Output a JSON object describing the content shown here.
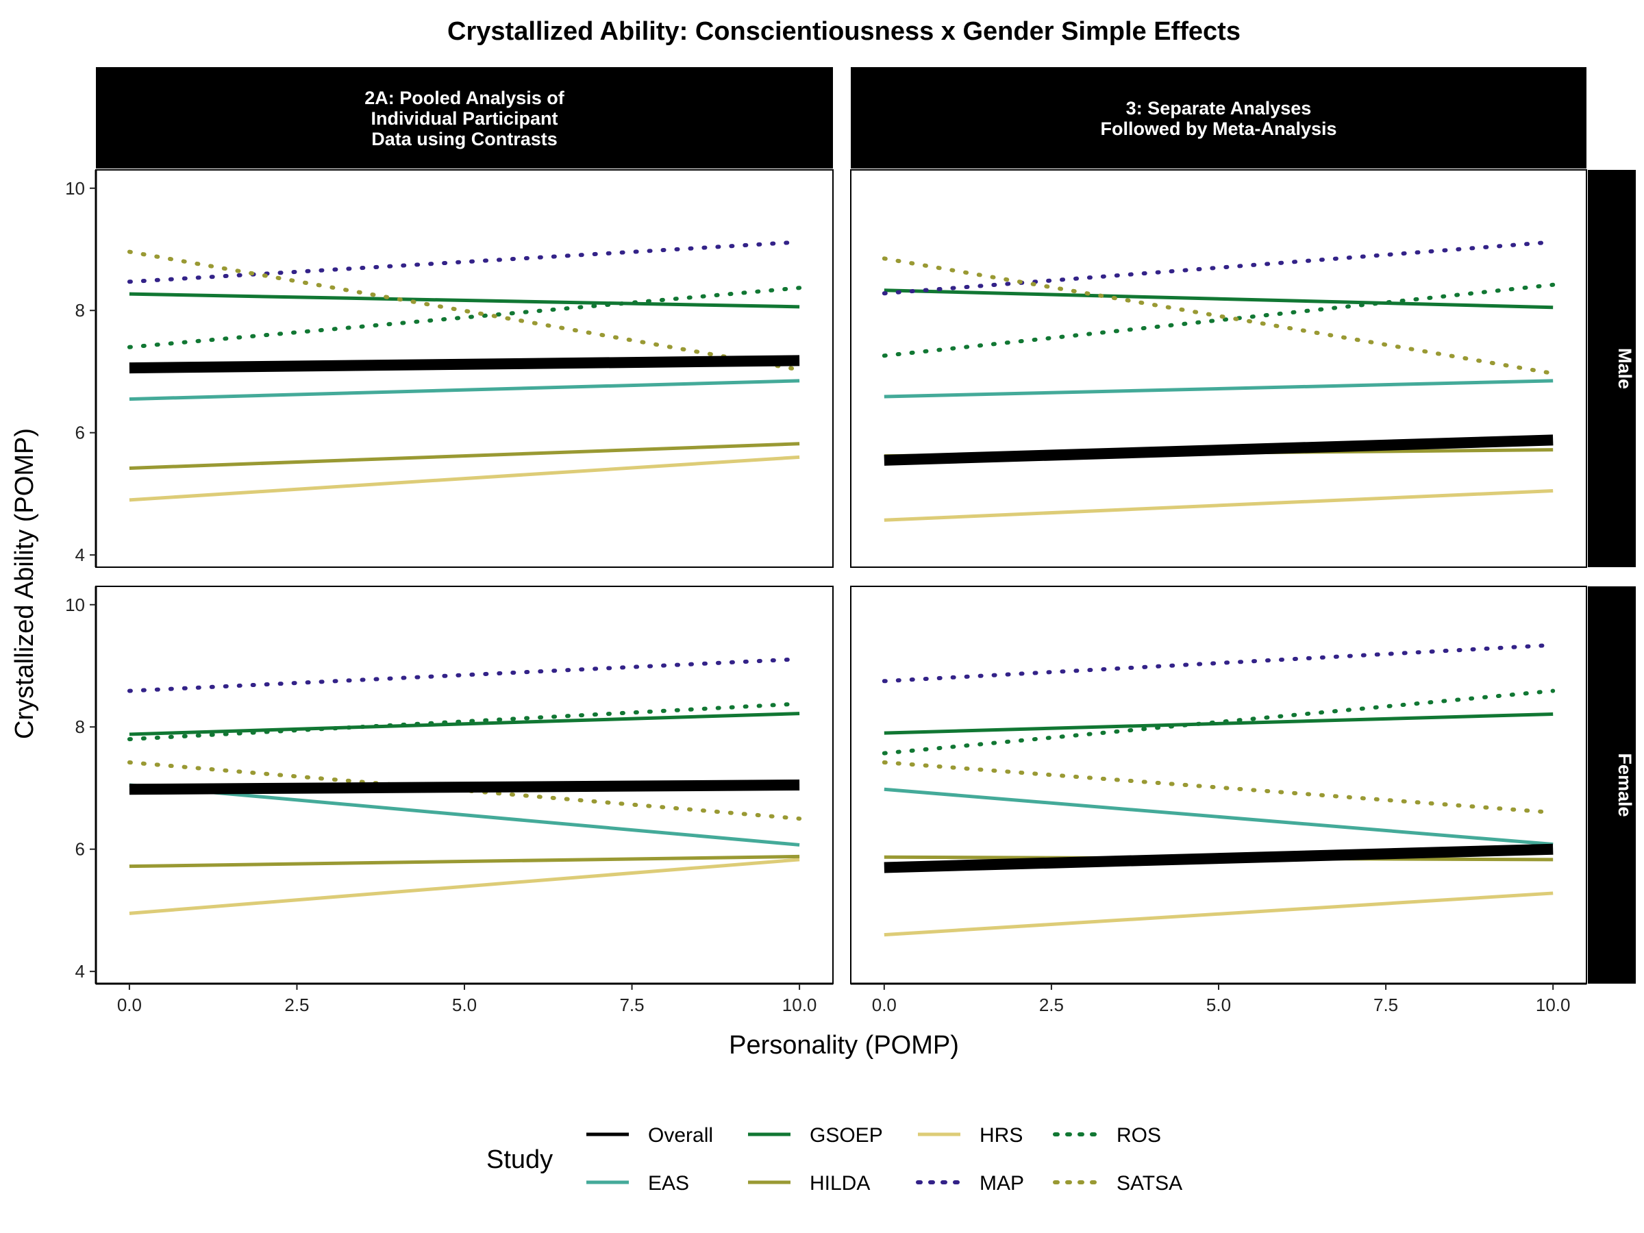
{
  "chart_data": {
    "type": "line",
    "title": "Crystallized Ability: Conscientiousness x Gender Simple Effects",
    "xlabel": "Personality (POMP)",
    "ylabel": "Crystallized Ability (POMP)",
    "xlim": [
      -0.5,
      10.5
    ],
    "ylim": [
      3.8,
      10.3
    ],
    "xticks": [
      "0.0",
      "2.5",
      "5.0",
      "7.5",
      "10.0"
    ],
    "xtick_values": [
      0,
      2.5,
      5,
      7.5,
      10
    ],
    "yticks": [
      "4",
      "6",
      "8",
      "10"
    ],
    "ytick_values": [
      4,
      6,
      8,
      10
    ],
    "grid": false,
    "columns": [
      "2A: Pooled Analysis of\nIndividual Participant\nData using Contrasts",
      "3: Separate Analyses\nFollowed by Meta-Analysis"
    ],
    "rows": [
      "Male",
      "Female"
    ],
    "legend": {
      "title": "Study",
      "position": "bottom",
      "entries": [
        "Overall",
        "EAS",
        "GSOEP",
        "HILDA",
        "HRS",
        "MAP",
        "ROS",
        "SATSA"
      ]
    },
    "styles": {
      "Overall": {
        "color": "#000000",
        "dash": "solid",
        "emphasis": true
      },
      "EAS": {
        "color": "#44AA99",
        "dash": "solid"
      },
      "GSOEP": {
        "color": "#117733",
        "dash": "solid"
      },
      "HILDA": {
        "color": "#999933",
        "dash": "solid"
      },
      "HRS": {
        "color": "#DDCC77",
        "dash": "solid"
      },
      "MAP": {
        "color": "#332288",
        "dash": "dotted"
      },
      "ROS": {
        "color": "#117733",
        "dash": "dotted"
      },
      "SATSA": {
        "color": "#999933",
        "dash": "dotted"
      }
    },
    "panels": [
      {
        "column": 0,
        "row": 0,
        "series": [
          {
            "name": "HRS",
            "x": [
              0,
              10
            ],
            "y": [
              4.9,
              5.6
            ]
          },
          {
            "name": "HILDA",
            "x": [
              0,
              10
            ],
            "y": [
              5.42,
              5.82
            ]
          },
          {
            "name": "EAS",
            "x": [
              0,
              10
            ],
            "y": [
              6.55,
              6.85
            ]
          },
          {
            "name": "GSOEP",
            "x": [
              0,
              10
            ],
            "y": [
              8.27,
              8.06
            ]
          },
          {
            "name": "ROS",
            "x": [
              0,
              10
            ],
            "y": [
              7.4,
              8.37
            ]
          },
          {
            "name": "MAP",
            "x": [
              0,
              10
            ],
            "y": [
              8.47,
              9.12
            ]
          },
          {
            "name": "SATSA",
            "x": [
              0,
              10
            ],
            "y": [
              8.96,
              7.03
            ]
          },
          {
            "name": "Overall",
            "x": [
              0,
              10
            ],
            "y": [
              7.06,
              7.18
            ]
          }
        ]
      },
      {
        "column": 1,
        "row": 0,
        "series": [
          {
            "name": "HRS",
            "x": [
              0,
              10
            ],
            "y": [
              4.57,
              5.05
            ]
          },
          {
            "name": "HILDA",
            "x": [
              0,
              10
            ],
            "y": [
              5.62,
              5.72
            ]
          },
          {
            "name": "EAS",
            "x": [
              0,
              10
            ],
            "y": [
              6.59,
              6.85
            ]
          },
          {
            "name": "GSOEP",
            "x": [
              0,
              10
            ],
            "y": [
              8.33,
              8.05
            ]
          },
          {
            "name": "ROS",
            "x": [
              0,
              10
            ],
            "y": [
              7.26,
              8.42
            ]
          },
          {
            "name": "MAP",
            "x": [
              0,
              10
            ],
            "y": [
              8.28,
              9.12
            ]
          },
          {
            "name": "SATSA",
            "x": [
              0,
              10
            ],
            "y": [
              8.85,
              6.97
            ]
          },
          {
            "name": "Overall",
            "x": [
              0,
              10
            ],
            "y": [
              5.55,
              5.88
            ]
          }
        ]
      },
      {
        "column": 0,
        "row": 1,
        "series": [
          {
            "name": "HRS",
            "x": [
              0,
              10
            ],
            "y": [
              4.95,
              5.83
            ]
          },
          {
            "name": "HILDA",
            "x": [
              0,
              10
            ],
            "y": [
              5.72,
              5.88
            ]
          },
          {
            "name": "EAS",
            "x": [
              0,
              10
            ],
            "y": [
              7.05,
              6.07
            ]
          },
          {
            "name": "GSOEP",
            "x": [
              0,
              10
            ],
            "y": [
              7.88,
              8.22
            ]
          },
          {
            "name": "ROS",
            "x": [
              0,
              10
            ],
            "y": [
              7.8,
              8.38
            ]
          },
          {
            "name": "MAP",
            "x": [
              0,
              10
            ],
            "y": [
              8.59,
              9.11
            ]
          },
          {
            "name": "SATSA",
            "x": [
              0,
              10
            ],
            "y": [
              7.42,
              6.5
            ]
          },
          {
            "name": "Overall",
            "x": [
              0,
              10
            ],
            "y": [
              6.98,
              7.05
            ]
          }
        ]
      },
      {
        "column": 1,
        "row": 1,
        "series": [
          {
            "name": "HRS",
            "x": [
              0,
              10
            ],
            "y": [
              4.6,
              5.28
            ]
          },
          {
            "name": "HILDA",
            "x": [
              0,
              10
            ],
            "y": [
              5.87,
              5.83
            ]
          },
          {
            "name": "EAS",
            "x": [
              0,
              10
            ],
            "y": [
              6.98,
              6.08
            ]
          },
          {
            "name": "GSOEP",
            "x": [
              0,
              10
            ],
            "y": [
              7.9,
              8.21
            ]
          },
          {
            "name": "ROS",
            "x": [
              0,
              10
            ],
            "y": [
              7.57,
              8.59
            ]
          },
          {
            "name": "MAP",
            "x": [
              0,
              10
            ],
            "y": [
              8.75,
              9.34
            ]
          },
          {
            "name": "SATSA",
            "x": [
              0,
              10
            ],
            "y": [
              7.42,
              6.6
            ]
          },
          {
            "name": "Overall",
            "x": [
              0,
              10
            ],
            "y": [
              5.7,
              6.0
            ]
          }
        ]
      }
    ]
  }
}
